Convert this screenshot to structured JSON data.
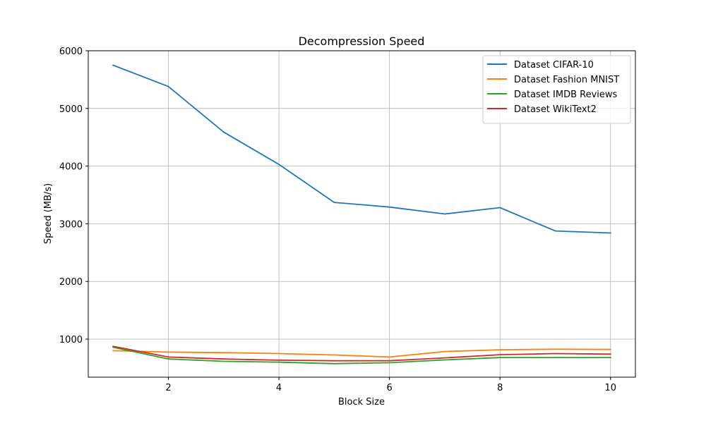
{
  "chart_data": {
    "type": "line",
    "title": "Decompression Speed",
    "xlabel": "Block Size",
    "ylabel": "Speed (MB/s)",
    "x": [
      1,
      2,
      3,
      4,
      5,
      6,
      7,
      8,
      9,
      10
    ],
    "xlim": [
      0.55,
      10.45
    ],
    "ylim": [
      340,
      6000
    ],
    "xticks": [
      2,
      4,
      6,
      8,
      10
    ],
    "yticks": [
      1000,
      2000,
      3000,
      4000,
      5000,
      6000
    ],
    "grid": true,
    "legend_position": "top-right",
    "series": [
      {
        "name": "Dataset CIFAR-10",
        "color": "#1f77b4",
        "values": [
          5750,
          5380,
          4590,
          4030,
          3370,
          3290,
          3170,
          3280,
          2875,
          2840
        ]
      },
      {
        "name": "Dataset Fashion MNIST",
        "color": "#ff7f0e",
        "values": [
          800,
          775,
          765,
          750,
          725,
          690,
          785,
          815,
          825,
          820
        ]
      },
      {
        "name": "Dataset IMDB Reviews",
        "color": "#2ca02c",
        "values": [
          860,
          655,
          615,
          600,
          575,
          590,
          640,
          680,
          680,
          680
        ]
      },
      {
        "name": "Dataset WikiText2",
        "color": "#d62728",
        "values": [
          875,
          690,
          655,
          635,
          625,
          625,
          675,
          730,
          750,
          740
        ]
      }
    ]
  }
}
